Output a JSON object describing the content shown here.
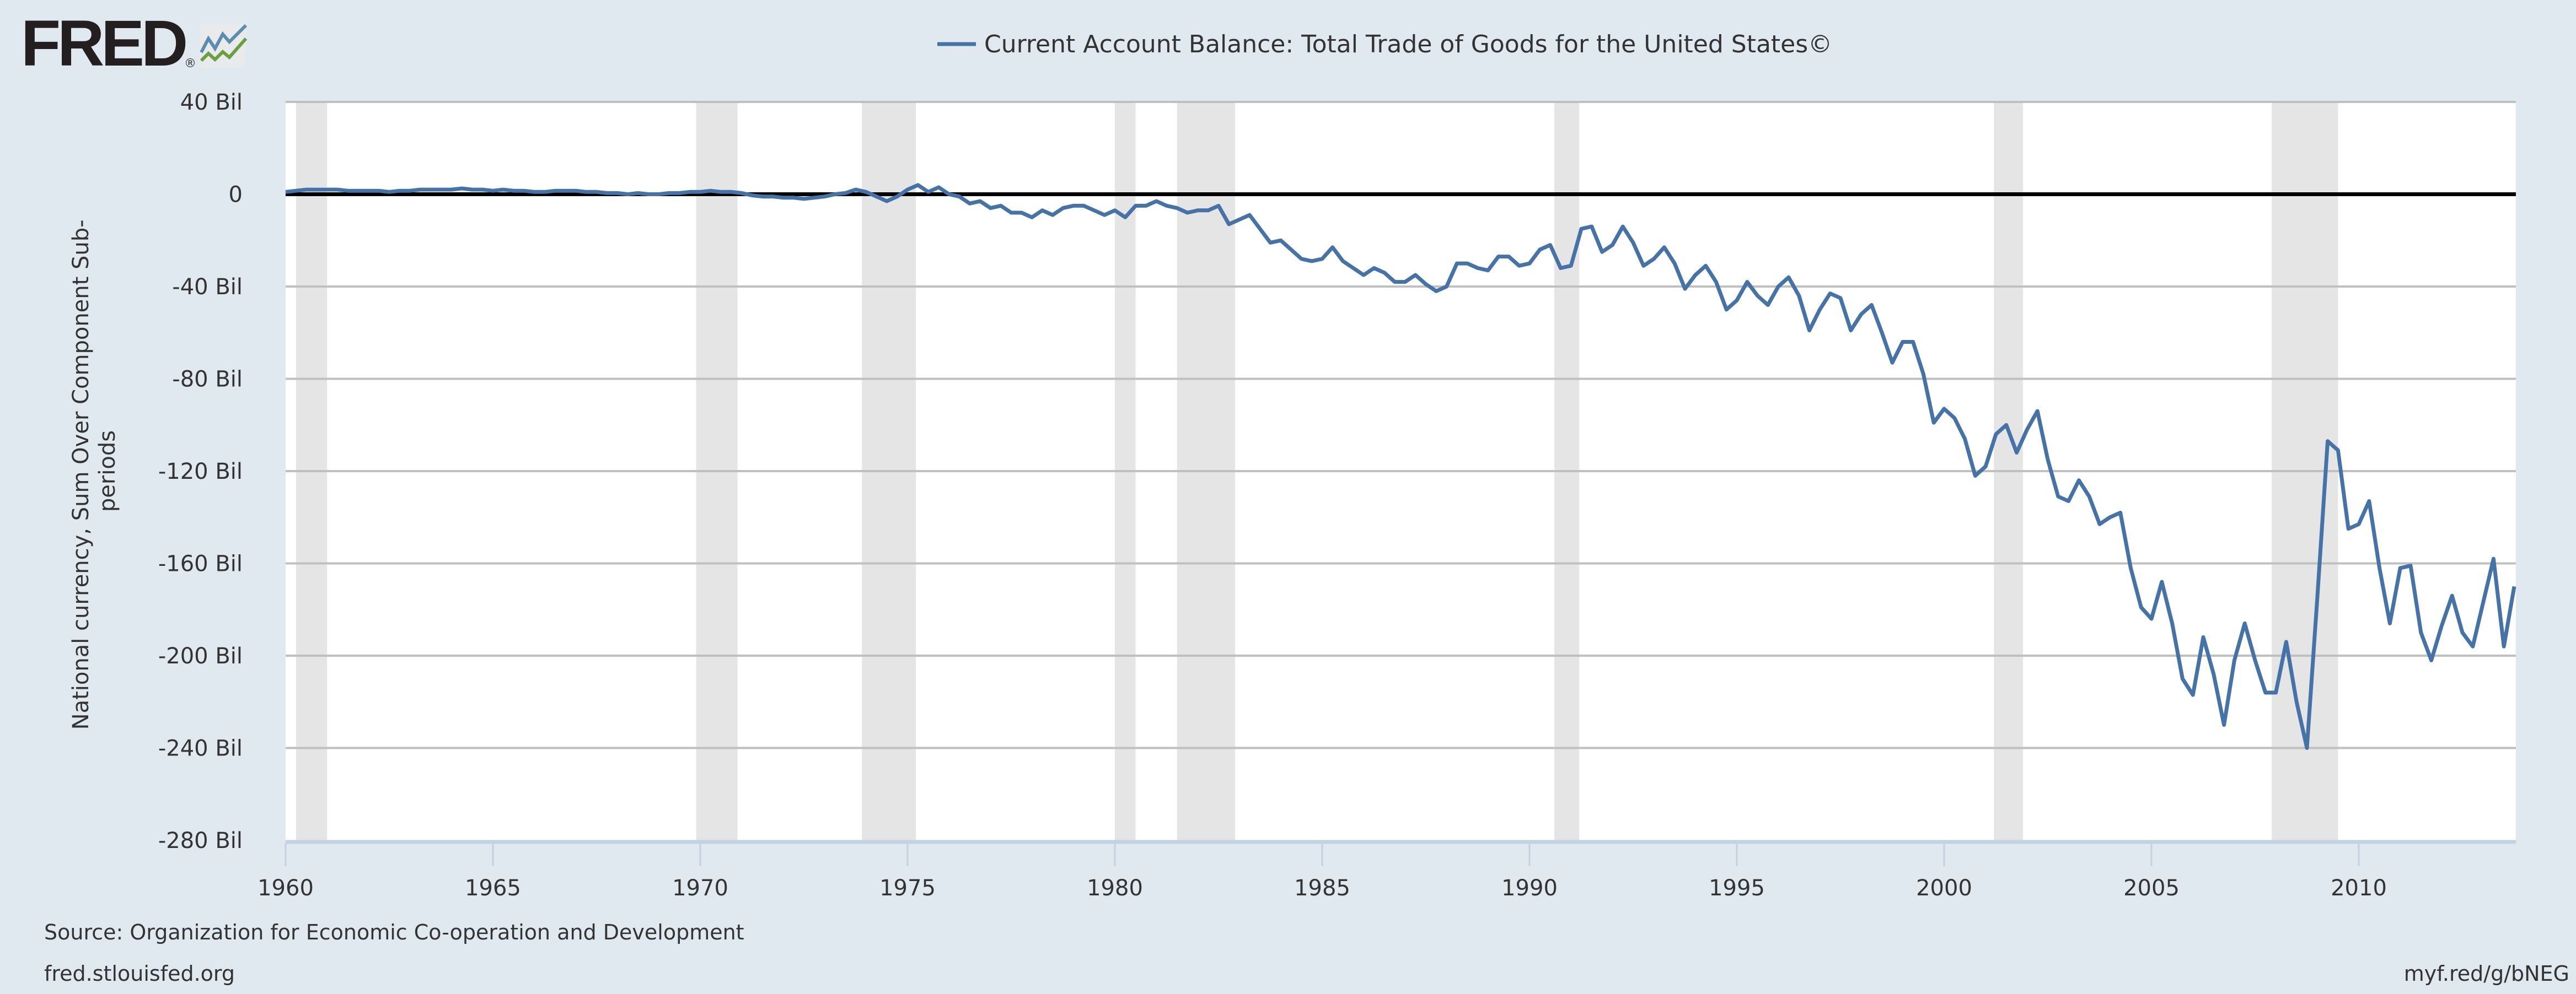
{
  "logo": {
    "text": "FRED",
    "registered": "®"
  },
  "chart_data": {
    "type": "line",
    "title": "Current Account Balance: Total Trade of Goods for the United States©",
    "ylabel_lines": [
      "National currency, Sum Over Component Sub-",
      "periods"
    ],
    "xlabel": "",
    "ylim": [
      -280,
      40
    ],
    "xlim": [
      1960,
      2013.75
    ],
    "y_ticks": [
      40,
      0,
      -40,
      -80,
      -120,
      -160,
      -200,
      -240,
      -280
    ],
    "y_tick_labels": [
      "40 Bil",
      "0",
      "-40 Bil",
      "-80 Bil",
      "-120 Bil",
      "-160 Bil",
      "-200 Bil",
      "-240 Bil",
      "-280 Bil"
    ],
    "x_ticks": [
      1960,
      1965,
      1970,
      1975,
      1980,
      1985,
      1990,
      1995,
      2000,
      2005,
      2010
    ],
    "x_tick_labels": [
      "1960",
      "1965",
      "1970",
      "1975",
      "1980",
      "1985",
      "1990",
      "1995",
      "2000",
      "2005",
      "2010"
    ],
    "grid": true,
    "series": [
      {
        "name": "Current Account Balance: Total Trade of Goods for the United States©",
        "color": "#4572a7",
        "start": 1960,
        "frequency": "quarterly",
        "unit": "Bil",
        "values": [
          1,
          1.5,
          2,
          2,
          2,
          2,
          1.5,
          1.5,
          1.5,
          1.5,
          1,
          1.5,
          1.5,
          2,
          2,
          2,
          2,
          2.5,
          2,
          2,
          1.5,
          2,
          1.5,
          1.5,
          1,
          1,
          1.5,
          1.5,
          1.5,
          1,
          1,
          0.5,
          0.5,
          0,
          0.5,
          0,
          0,
          0.5,
          0.5,
          1,
          1,
          1.5,
          1,
          1,
          0.5,
          -0.5,
          -1,
          -1,
          -1.5,
          -1.5,
          -2,
          -1.5,
          -1,
          0,
          0.5,
          2,
          1,
          -1,
          -3,
          -1,
          2,
          4,
          1,
          3,
          0,
          -1,
          -4,
          -3,
          -6,
          -5,
          -8,
          -8,
          -10,
          -7,
          -9,
          -6,
          -5,
          -5,
          -7,
          -9,
          -7,
          -10,
          -5,
          -5,
          -3,
          -5,
          -6,
          -8,
          -7,
          -7,
          -5,
          -13,
          -11,
          -9,
          -15,
          -21,
          -20,
          -24,
          -28,
          -29,
          -28,
          -23,
          -29,
          -32,
          -35,
          -32,
          -34,
          -38,
          -38,
          -35,
          -39,
          -42,
          -40,
          -30,
          -30,
          -32,
          -33,
          -27,
          -27,
          -31,
          -30,
          -24,
          -22,
          -32,
          -31,
          -15,
          -14,
          -25,
          -22,
          -14,
          -21,
          -31,
          -28,
          -23,
          -30,
          -41,
          -35,
          -31,
          -38,
          -50,
          -46,
          -38,
          -44,
          -48,
          -40,
          -36,
          -44,
          -59,
          -50,
          -43,
          -45,
          -59,
          -52,
          -48,
          -60,
          -73,
          -64,
          -64,
          -78,
          -99,
          -93,
          -97,
          -106,
          -122,
          -118,
          -104,
          -100,
          -112,
          -102,
          -94,
          -115,
          -131,
          -133,
          -124,
          -131,
          -143,
          -140,
          -138,
          -162,
          -179,
          -184,
          -168,
          -186,
          -210,
          -217,
          -192,
          -208,
          -230,
          -202,
          -186,
          -202,
          -216,
          -216,
          -194,
          -220,
          -240,
          -175,
          -107,
          -111,
          -145,
          -143,
          -133,
          -162,
          -186,
          -162,
          -161,
          -190,
          -202,
          -187,
          -174,
          -190,
          -196,
          -177,
          -158,
          -196,
          -170
        ]
      }
    ],
    "recessions": [
      [
        1960.25,
        1961.0
      ],
      [
        1969.9,
        1970.9
      ],
      [
        1973.9,
        1975.2
      ],
      [
        1980.0,
        1980.5
      ],
      [
        1981.5,
        1982.9
      ],
      [
        1990.6,
        1991.2
      ],
      [
        2001.2,
        2001.9
      ],
      [
        2007.9,
        2009.5
      ]
    ],
    "legend": "top-center"
  },
  "footer": {
    "source": "Source: Organization for Economic Co-operation and Development",
    "site": "fred.stlouisfed.org",
    "short_url": "myf.red/g/bNEG"
  },
  "colors": {
    "background": "#e1e9f0",
    "plot": "#ffffff",
    "line": "#4572a7",
    "recession": "#e5e5e5",
    "grid": "#c0c0c0"
  }
}
